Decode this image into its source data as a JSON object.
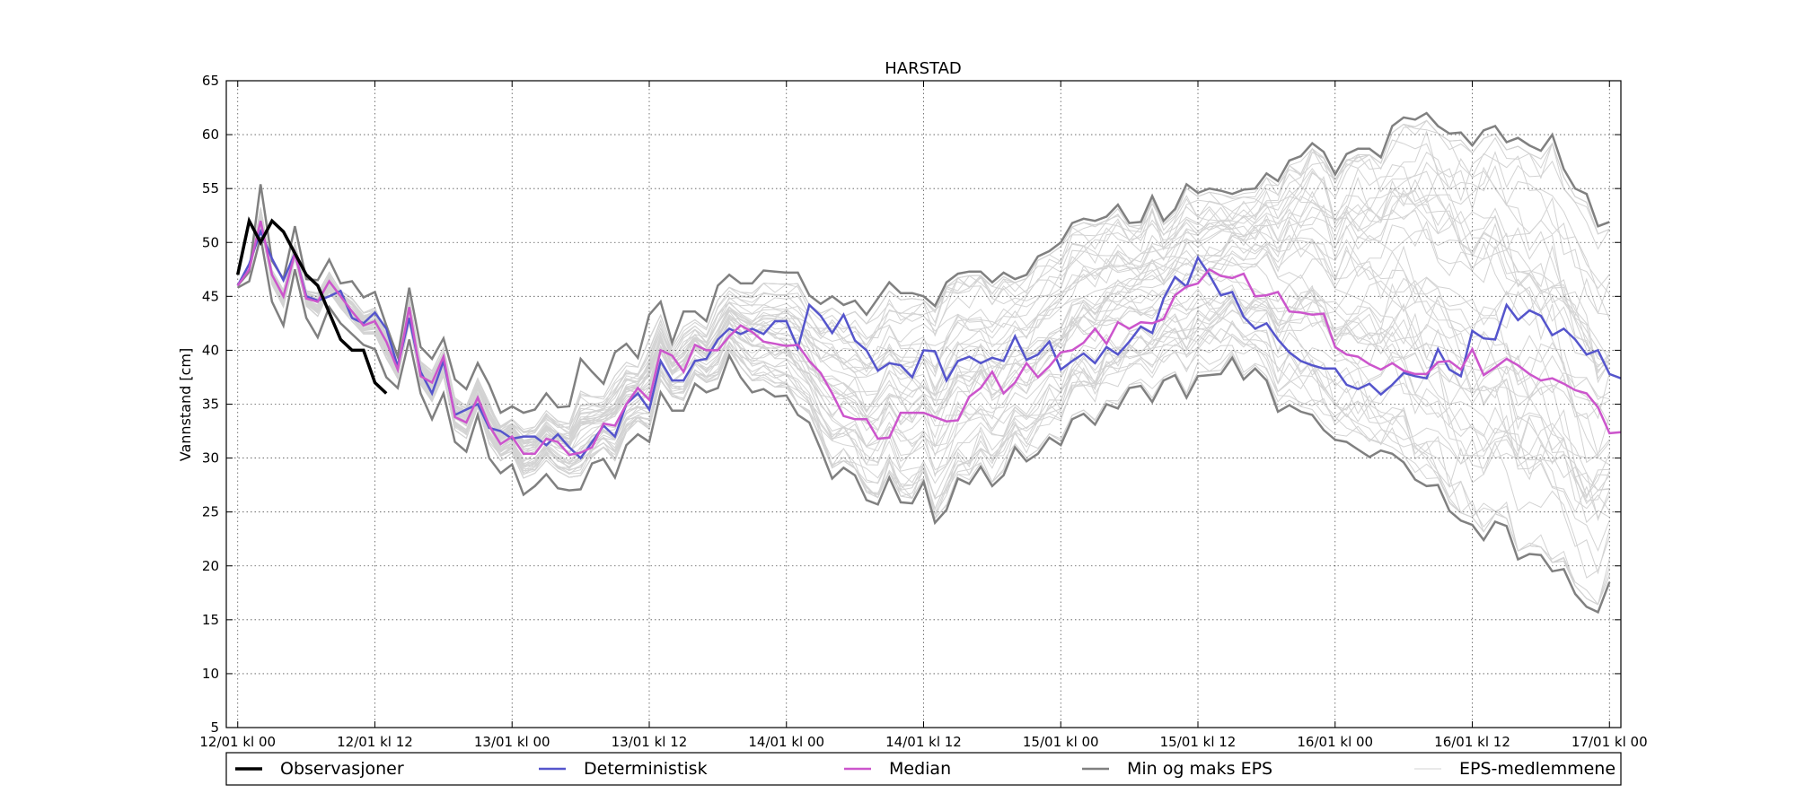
{
  "chart_data": {
    "type": "line",
    "title": "HARSTAD",
    "xlabel": "",
    "ylabel": "Vannstand [cm]",
    "x_unit": "hours from 12/01 kl 00",
    "xlim": [
      -1,
      121
    ],
    "ylim": [
      5,
      65
    ],
    "grid": true,
    "legend_position": "bottom",
    "x_ticks": [
      {
        "x": 0,
        "label": "12/01 kl 00"
      },
      {
        "x": 12,
        "label": "12/01 kl 12"
      },
      {
        "x": 24,
        "label": "13/01 kl 00"
      },
      {
        "x": 36,
        "label": "13/01 kl 12"
      },
      {
        "x": 48,
        "label": "14/01 kl 00"
      },
      {
        "x": 60,
        "label": "14/01 kl 12"
      },
      {
        "x": 72,
        "label": "15/01 kl 00"
      },
      {
        "x": 84,
        "label": "15/01 kl 12"
      },
      {
        "x": 96,
        "label": "16/01 kl 00"
      },
      {
        "x": 108,
        "label": "16/01 kl 12"
      },
      {
        "x": 120,
        "label": "17/01 kl 00"
      }
    ],
    "y_ticks": [
      5,
      10,
      15,
      20,
      25,
      30,
      35,
      40,
      45,
      50,
      55,
      60,
      65
    ],
    "colors": {
      "observations": "#000000",
      "deterministic": "#5555cc",
      "median": "#cc55cc",
      "minmax": "#808080",
      "members": "#d3d3d3"
    },
    "series": [
      {
        "name": "Observasjoner",
        "x": [
          0,
          1,
          2,
          3,
          4,
          5,
          6,
          7,
          8,
          9,
          10,
          11,
          12,
          13,
          14
        ],
        "y": [
          47,
          52,
          50,
          52,
          51,
          49,
          47,
          46,
          43.5,
          41,
          40,
          40,
          37,
          36,
          null
        ]
      },
      {
        "name": "Deterministisk",
        "x_start": 0,
        "x_step": 1,
        "values": [
          46,
          48,
          51,
          48.5,
          46.5,
          49,
          45,
          44.6,
          45,
          45.5,
          43,
          42.5,
          43.5,
          42,
          38.5,
          43,
          38,
          36,
          39,
          34,
          34.5,
          35,
          32.8,
          32.5,
          31.8,
          32,
          32,
          31.2,
          32.2,
          31,
          30,
          31.5,
          33,
          32,
          35,
          36,
          34.5,
          39,
          37.2,
          37.2,
          39,
          39.2,
          41,
          42,
          41.5,
          42,
          41.5,
          42.7,
          42.7,
          40.2,
          44.2,
          43.2,
          41.6,
          43.3,
          40.9,
          40,
          38.1,
          38.8,
          38.6,
          37.5,
          40,
          39.9,
          37.2,
          39,
          39.4,
          38.8,
          39.3,
          39,
          41.3,
          39.1,
          39.6,
          40.8,
          38.2,
          39,
          39.7,
          38.8,
          40.3,
          39.6,
          40.8,
          42.2,
          41.6,
          44.8,
          46.8,
          45.9,
          48.6,
          47,
          45.1,
          45.4,
          43.1,
          42,
          42.5,
          41,
          39.8,
          39,
          38.6,
          38.3,
          38.3,
          36.8,
          36.4,
          36.9,
          35.9,
          36.8,
          37.9,
          37.6,
          37.4,
          40.1,
          38.2,
          37.6,
          41.8,
          41.1,
          41,
          44.2,
          42.8,
          43.7,
          43.2,
          41.4,
          42,
          41,
          39.6,
          40,
          37.8,
          37.4
        ]
      },
      {
        "name": "Median",
        "x_start": 0,
        "x_step": 1,
        "values": [
          46,
          47.5,
          52,
          47,
          45,
          49,
          44.8,
          44.5,
          46.4,
          45,
          43.6,
          42.3,
          42.7,
          40.8,
          38.2,
          44,
          37.6,
          37,
          39.4,
          33.8,
          33.3,
          35.6,
          33,
          31.3,
          32,
          30.4,
          30.4,
          31.8,
          31.5,
          30.3,
          30.5,
          31,
          33.2,
          33,
          35,
          36.5,
          35.4,
          40,
          39.5,
          38,
          40.5,
          40,
          40,
          41.3,
          42.3,
          41.7,
          40.8,
          40.6,
          40.4,
          40.5,
          39,
          37.9,
          36,
          33.9,
          33.6,
          33.6,
          31.8,
          31.9,
          34.2,
          34.2,
          34.2,
          33.8,
          33.4,
          33.5,
          35.7,
          36.5,
          38,
          36,
          37,
          38.8,
          37.5,
          38.5,
          39.8,
          40,
          40.7,
          42,
          40.6,
          42.6,
          42,
          42.6,
          42.5,
          42.9,
          45.1,
          45.9,
          46.2,
          47.5,
          46.9,
          46.7,
          47.1,
          45,
          45.1,
          45.4,
          43.6,
          43.5,
          43.3,
          43.4,
          40.3,
          39.6,
          39.4,
          38.7,
          38.2,
          38.8,
          38.1,
          37.8,
          37.8,
          38.9,
          39,
          38.2,
          40.1,
          37.7,
          38.4,
          39.2,
          38.6,
          37.8,
          37.2,
          37.4,
          36.9,
          36.3,
          36,
          34.7,
          32.3,
          32.4
        ]
      },
      {
        "name": "Min og maks EPS",
        "x_start": 0,
        "x_step": 1,
        "min": [
          45.8,
          46.4,
          50.5,
          44.5,
          42.3,
          47.5,
          43,
          41.2,
          44,
          42.5,
          41.5,
          40.5,
          40.1,
          37.5,
          36.5,
          41,
          36,
          33.6,
          36,
          31.5,
          30.6,
          34,
          30,
          28.6,
          29.4,
          26.6,
          27.4,
          28.5,
          27.2,
          27,
          27.1,
          29.5,
          29.9,
          28.2,
          31.2,
          32.2,
          31.5,
          36.1,
          34.4,
          34.4,
          36.9,
          36.1,
          36.5,
          39.5,
          37.5,
          36.1,
          36.4,
          35.7,
          35.8,
          34,
          33.3,
          30.8,
          28.1,
          29.1,
          28.4,
          26.1,
          25.7,
          28.2,
          25.9,
          25.8,
          27.8,
          24,
          25.2,
          28.1,
          27.6,
          29.2,
          27.4,
          28.4,
          31,
          29.7,
          30.4,
          31.9,
          31.2,
          33.6,
          34.1,
          33.1,
          35,
          34.6,
          36.5,
          36.7,
          35.2,
          37.2,
          37.7,
          35.6,
          37.6,
          37.7,
          37.8,
          39.3,
          37.3,
          38.3,
          37.2,
          34.3,
          34.9,
          34.3,
          34,
          32.6,
          31.7,
          31.5,
          30.8,
          30.1,
          30.7,
          30.4,
          29.6,
          28,
          27.4,
          27.5,
          25.1,
          24.2,
          23.8,
          22.4,
          24.1,
          23.7,
          20.6,
          21.1,
          21,
          19.5,
          19.7,
          17.4,
          16.2,
          15.7,
          18.5
        ],
        "max": [
          46,
          47.3,
          55.4,
          48.3,
          46.6,
          51.5,
          46.6,
          46.5,
          48.4,
          46.2,
          46.4,
          44.9,
          45.4,
          42.3,
          39.4,
          45.8,
          40.3,
          39.2,
          41.1,
          37.3,
          36.4,
          38.8,
          36.8,
          34.2,
          34.8,
          34.2,
          34.5,
          36,
          34.7,
          34.8,
          39.2,
          38,
          36.9,
          39.8,
          40.6,
          39.3,
          43.3,
          44.5,
          40.7,
          43.6,
          43.6,
          42.7,
          46,
          47,
          46.2,
          46.2,
          47.4,
          47.3,
          47.2,
          47.2,
          45.1,
          44.3,
          45,
          44.2,
          44.6,
          43.3,
          44.8,
          46.3,
          45.3,
          45.3,
          45,
          44.1,
          46.3,
          47.1,
          47.3,
          47.3,
          46.3,
          47.2,
          46.6,
          47,
          48.7,
          49.2,
          50,
          51.8,
          52.2,
          52,
          52.4,
          53.5,
          51.8,
          51.9,
          54.3,
          52,
          53.1,
          55.4,
          54.6,
          55,
          54.8,
          54.5,
          54.9,
          55,
          56.4,
          55.7,
          57.6,
          58,
          59.2,
          58.4,
          56.3,
          58.2,
          58.7,
          58.7,
          57.9,
          60.8,
          61.6,
          61.4,
          62,
          60.8,
          60.1,
          60.2,
          59,
          60.4,
          60.8,
          59.3,
          59.7,
          59,
          58.5,
          60,
          56.8,
          55,
          54.5,
          51.5,
          51.9
        ]
      },
      {
        "name": "EPS-medlemmene",
        "x_start": 0,
        "x_step": 1,
        "members_note": "",
        "count": 50
      }
    ]
  },
  "legend": [
    {
      "label": "Observasjoner",
      "color": "#000000",
      "width": 3.5
    },
    {
      "label": "Deterministisk",
      "color": "#5555cc",
      "width": 2.5
    },
    {
      "label": "Median",
      "color": "#cc55cc",
      "width": 2.5
    },
    {
      "label": "Min og maks EPS",
      "color": "#808080",
      "width": 2.5
    },
    {
      "label": "EPS-medlemmene",
      "color": "#d3d3d3",
      "width": 1
    }
  ]
}
